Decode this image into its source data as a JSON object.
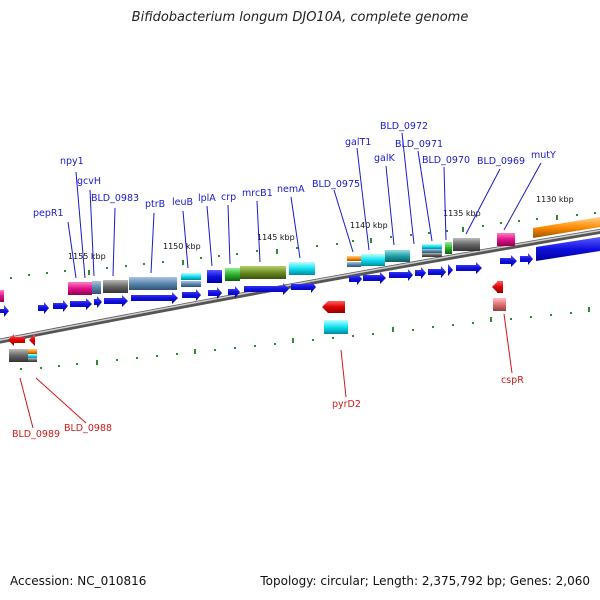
{
  "title": "Bifidobacterium longum DJO10A, complete genome",
  "footer": {
    "accession": "Accession: NC_010816",
    "stats": "Topology: circular; Length: 2,375,792 bp; Genes: 2,060"
  },
  "scale_labels": [
    "1155 kbp",
    "1150 kbp",
    "1145 kbp",
    "1140 kbp",
    "1135 kbp",
    "1130 kbp"
  ],
  "top_genes": [
    "pepR1",
    "npy1",
    "gcvH",
    "BLD_0983",
    "ptrB",
    "leuB",
    "lplA",
    "crp",
    "mrcB1",
    "nemA",
    "BLD_0975",
    "galT1",
    "BLD_0972",
    "galK",
    "BLD_0971",
    "BLD_0970",
    "BLD_0969",
    "mutY"
  ],
  "bottom_genes": [
    "BLD_0989",
    "BLD_0988",
    "pyrD2",
    "cspR"
  ],
  "colors": {
    "forward_cds": "#1a1adb",
    "reverse_cds": "#e01010",
    "label_forward": "#1a1acc",
    "label_reverse": "#cc1a1a",
    "tick": "#2e8b2e",
    "backbone": "#888888"
  }
}
